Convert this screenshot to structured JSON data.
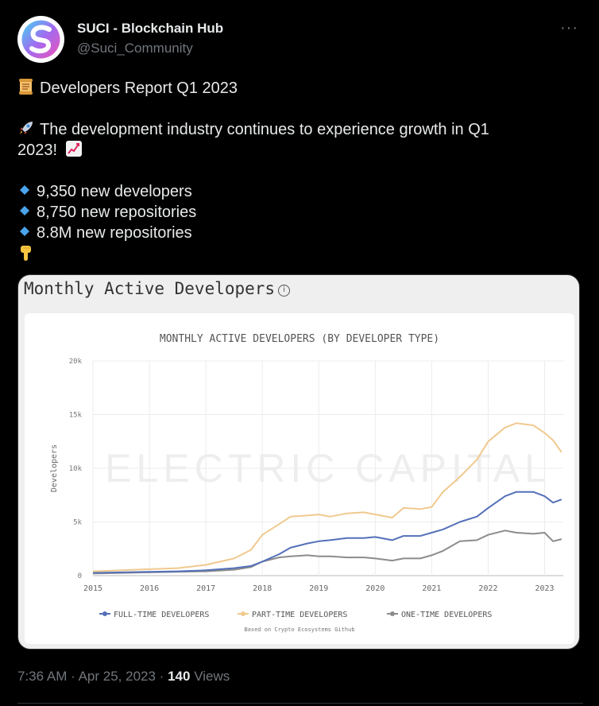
{
  "author": {
    "name": "SUCI - Blockchain Hub",
    "handle": "@Suci_Community"
  },
  "more_label": "···",
  "tweet": {
    "title": "Developers Report Q1 2023",
    "line1": "The development industry continues to experience growth in Q1",
    "line2": "2023!",
    "bullets": [
      "9,350 new developers",
      "8,750 new repositories",
      "8.8M new repositories"
    ]
  },
  "card": {
    "title": "Monthly Active Developers",
    "info_icon": "i"
  },
  "footer": {
    "time": "7:36 AM",
    "date": "Apr 25, 2023",
    "views_count": "140",
    "views_label": "Views"
  },
  "colors": {
    "full_time": "#5470b8",
    "part_time": "#f0c98f",
    "one_time": "#8c8c8c"
  },
  "chart_data": {
    "type": "line",
    "title": "MONTHLY ACTIVE DEVELOPERS (BY DEVELOPER TYPE)",
    "ylabel": "Developers",
    "xlabel": "",
    "watermark": "ELECTRIC CAPITAL",
    "source": "Based on Crypto Ecosystems Github",
    "ylim": [
      0,
      20000
    ],
    "xlim": [
      2015.0,
      2023.33
    ],
    "yticks": [
      0,
      5000,
      10000,
      15000,
      20000
    ],
    "ytick_labels": [
      "0",
      "5k",
      "10k",
      "15k",
      "20k"
    ],
    "xticks": [
      2015,
      2016,
      2017,
      2018,
      2019,
      2020,
      2021,
      2022,
      2023
    ],
    "xtick_labels": [
      "2015",
      "2016",
      "2017",
      "2018",
      "2019",
      "2020",
      "2021",
      "2022",
      "2023"
    ],
    "x": [
      2015.0,
      2015.5,
      2016.0,
      2016.5,
      2017.0,
      2017.5,
      2017.8,
      2018.0,
      2018.3,
      2018.5,
      2018.8,
      2019.0,
      2019.2,
      2019.5,
      2019.8,
      2020.0,
      2020.3,
      2020.5,
      2020.8,
      2021.0,
      2021.2,
      2021.5,
      2021.8,
      2022.0,
      2022.3,
      2022.5,
      2022.8,
      2023.0,
      2023.15,
      2023.3
    ],
    "series": [
      {
        "name": "FULL-TIME DEVELOPERS",
        "values": [
          250,
          300,
          350,
          400,
          500,
          700,
          900,
          1300,
          2000,
          2600,
          3000,
          3200,
          3300,
          3500,
          3500,
          3600,
          3300,
          3700,
          3700,
          4000,
          4300,
          5000,
          5500,
          6300,
          7400,
          7800,
          7800,
          7400,
          6800,
          7100
        ]
      },
      {
        "name": "PART-TIME DEVELOPERS",
        "values": [
          400,
          500,
          600,
          700,
          1000,
          1600,
          2400,
          3800,
          4800,
          5500,
          5600,
          5700,
          5500,
          5800,
          5900,
          5700,
          5400,
          6300,
          6200,
          6400,
          7800,
          9200,
          10800,
          12500,
          13800,
          14200,
          14000,
          13300,
          12600,
          11500
        ]
      },
      {
        "name": "ONE-TIME DEVELOPERS",
        "values": [
          200,
          250,
          300,
          350,
          400,
          550,
          800,
          1300,
          1700,
          1800,
          1900,
          1800,
          1800,
          1700,
          1700,
          1600,
          1400,
          1600,
          1600,
          1900,
          2300,
          3200,
          3300,
          3800,
          4200,
          4000,
          3900,
          4000,
          3200,
          3400
        ]
      }
    ]
  }
}
